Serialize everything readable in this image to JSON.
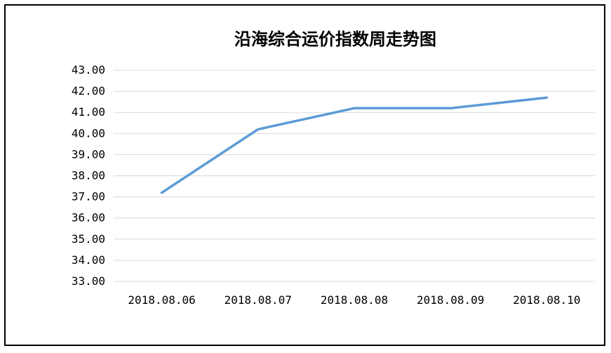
{
  "chart_data": {
    "type": "line",
    "title": "沿海综合运价指数周走势图",
    "xlabel": "",
    "ylabel": "",
    "categories": [
      "2018.08.06",
      "2018.08.07",
      "2018.08.08",
      "2018.08.09",
      "2018.08.10"
    ],
    "series": [
      {
        "values": [
          37.2,
          40.2,
          41.2,
          41.2,
          41.7
        ]
      }
    ],
    "ylim": [
      33,
      43
    ],
    "yticks": [
      "33.00",
      "34.00",
      "35.00",
      "36.00",
      "37.00",
      "38.00",
      "39.00",
      "40.00",
      "41.00",
      "42.00",
      "43.00"
    ],
    "grid": true,
    "legend": "none",
    "colors": {
      "line": "#5b9bd5",
      "grid": "#d9d9d9"
    }
  }
}
